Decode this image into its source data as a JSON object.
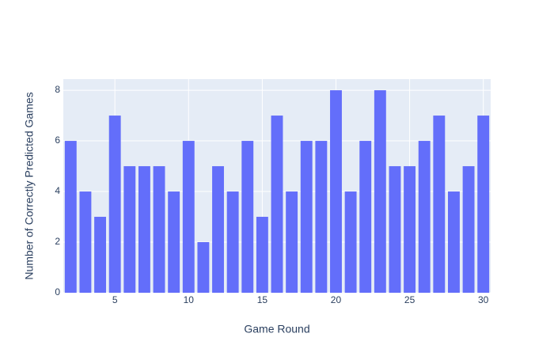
{
  "chart_data": {
    "type": "bar",
    "x_label": "Game Round",
    "y_label": "Number of Correctly Predicted Games",
    "x": [
      2,
      3,
      4,
      5,
      6,
      7,
      8,
      9,
      10,
      11,
      12,
      13,
      14,
      15,
      16,
      17,
      18,
      19,
      20,
      21,
      22,
      23,
      24,
      25,
      26,
      27,
      28,
      29,
      30
    ],
    "values": [
      6,
      4,
      3,
      7,
      5,
      5,
      5,
      4,
      6,
      2,
      5,
      4,
      6,
      3,
      7,
      4,
      6,
      6,
      8,
      4,
      6,
      8,
      5,
      5,
      6,
      7,
      4,
      5,
      7
    ],
    "color": "#636efa",
    "xlim": [
      1.5,
      30.5
    ],
    "xticks": [
      5,
      10,
      15,
      20,
      25,
      30
    ],
    "ylim": [
      0,
      8.44
    ],
    "yticks": [
      0,
      2,
      4,
      6,
      8
    ],
    "grid": true
  }
}
